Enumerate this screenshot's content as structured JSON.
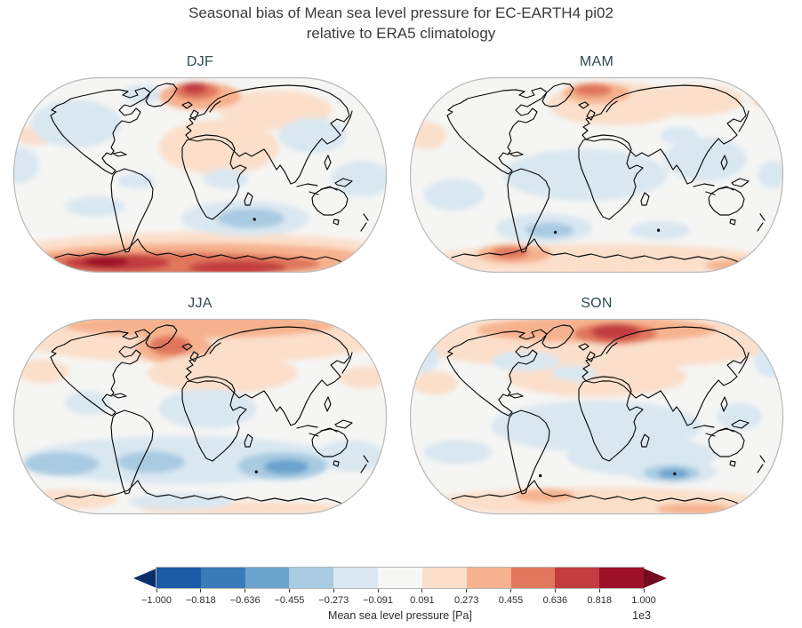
{
  "figure": {
    "title_line1": "Seasonal bias of Mean sea level pressure for EC-EARTH4 pi02",
    "title_line2": "relative to ERA5 climatology"
  },
  "colors": {
    "figure_background": "#ffffff",
    "map_background": "#f5f5f3",
    "coastline": "#0a0a0a",
    "map_outline": "#b9b9b9",
    "panel_title_text": "#2f4c52",
    "figure_title_text": "#3a3a3a",
    "tick_text": "#2d2d2d",
    "extreme_dot": "#111111"
  },
  "chart_data": {
    "type": "heatmap",
    "subtype": "filled-contour world maps, Robinson projection, 2x2 season grid",
    "title": "Seasonal bias of Mean sea level pressure for EC-EARTH4 pi02 relative to ERA5 climatology",
    "units": "Pa",
    "scale_multiplier": "1e3",
    "legend_position": "bottom horizontal colorbar with triangular over/under extensions",
    "colorbar": {
      "label": "Mean sea level pressure [Pa]",
      "multiplier": "1e3",
      "ticks": [
        "−1.000",
        "−0.818",
        "−0.636",
        "−0.455",
        "−0.273",
        "−0.091",
        "0.091",
        "0.273",
        "0.455",
        "0.636",
        "0.818",
        "1.000"
      ],
      "tick_values_Pa": [
        -1000,
        -818,
        -636,
        -455,
        -273,
        -91,
        91,
        273,
        455,
        636,
        818,
        1000
      ],
      "segment_colors": [
        "#1c5ba6",
        "#3a7ab8",
        "#6ba3cd",
        "#a8cbe2",
        "#d9e7f1",
        "#f6f6f4",
        "#fbdfcb",
        "#f6b28e",
        "#e0765b",
        "#c23c40",
        "#9c1127"
      ],
      "under_color": "#0b2e6b",
      "over_color": "#730c20"
    },
    "level_note": "feature level k maps to the k-th color band away from the white center band; positive = red (positive bias), negative = blue (negative bias); x,y,rx,ry are fractions of map width/height",
    "panels": [
      {
        "season": "DJF",
        "features": [
          {
            "x": 0.55,
            "y": 0.36,
            "rx": 0.16,
            "ry": 0.14,
            "level": 1
          },
          {
            "x": 0.7,
            "y": 0.17,
            "rx": 0.15,
            "ry": 0.1,
            "level": 1
          },
          {
            "x": 0.5,
            "y": 0.1,
            "rx": 0.11,
            "ry": 0.07,
            "level": 2
          },
          {
            "x": 0.49,
            "y": 0.075,
            "rx": 0.06,
            "ry": 0.045,
            "level": 3
          },
          {
            "x": 0.485,
            "y": 0.06,
            "rx": 0.033,
            "ry": 0.028,
            "level": 4
          },
          {
            "x": 0.06,
            "y": 0.3,
            "rx": 0.05,
            "ry": 0.05,
            "level": 1
          },
          {
            "x": 0.5,
            "y": 0.9,
            "rx": 0.52,
            "ry": 0.11,
            "level": 1
          },
          {
            "x": 0.5,
            "y": 0.93,
            "rx": 0.48,
            "ry": 0.085,
            "level": 2
          },
          {
            "x": 0.42,
            "y": 0.95,
            "rx": 0.4,
            "ry": 0.06,
            "level": 3
          },
          {
            "x": 0.28,
            "y": 0.945,
            "rx": 0.14,
            "ry": 0.042,
            "level": 4
          },
          {
            "x": 0.6,
            "y": 0.97,
            "rx": 0.13,
            "ry": 0.035,
            "level": 4
          },
          {
            "x": 0.25,
            "y": 0.94,
            "rx": 0.06,
            "ry": 0.026,
            "level": 5
          },
          {
            "x": 0.17,
            "y": 0.24,
            "rx": 0.12,
            "ry": 0.12,
            "level": -1
          },
          {
            "x": 0.345,
            "y": 0.09,
            "rx": 0.05,
            "ry": 0.05,
            "level": -1
          },
          {
            "x": 0.8,
            "y": 0.3,
            "rx": 0.09,
            "ry": 0.09,
            "level": -1
          },
          {
            "x": 0.93,
            "y": 0.52,
            "rx": 0.08,
            "ry": 0.09,
            "level": -1
          },
          {
            "x": 0.57,
            "y": 0.52,
            "rx": 0.06,
            "ry": 0.05,
            "level": -1
          },
          {
            "x": 0.33,
            "y": 0.53,
            "rx": 0.05,
            "ry": 0.04,
            "level": -1
          },
          {
            "x": 0.62,
            "y": 0.72,
            "rx": 0.17,
            "ry": 0.09,
            "level": -1
          },
          {
            "x": 0.635,
            "y": 0.72,
            "rx": 0.09,
            "ry": 0.05,
            "level": -2
          },
          {
            "x": 0.22,
            "y": 0.66,
            "rx": 0.08,
            "ry": 0.05,
            "level": -1
          },
          {
            "x": 0.02,
            "y": 0.45,
            "rx": 0.05,
            "ry": 0.09,
            "level": -1
          }
        ],
        "dots": [
          {
            "x": 0.645,
            "y": 0.725
          }
        ]
      },
      {
        "season": "MAM",
        "features": [
          {
            "x": 0.55,
            "y": 0.14,
            "rx": 0.18,
            "ry": 0.11,
            "level": 1
          },
          {
            "x": 0.5,
            "y": 0.085,
            "rx": 0.09,
            "ry": 0.055,
            "level": 2
          },
          {
            "x": 0.49,
            "y": 0.07,
            "rx": 0.05,
            "ry": 0.032,
            "level": 3
          },
          {
            "x": 0.76,
            "y": 0.12,
            "rx": 0.13,
            "ry": 0.08,
            "level": 1
          },
          {
            "x": 0.97,
            "y": 0.1,
            "rx": 0.06,
            "ry": 0.07,
            "level": 1
          },
          {
            "x": 0.045,
            "y": 0.3,
            "rx": 0.055,
            "ry": 0.07,
            "level": 1
          },
          {
            "x": 0.5,
            "y": 0.93,
            "rx": 0.46,
            "ry": 0.08,
            "level": 1
          },
          {
            "x": 0.28,
            "y": 0.9,
            "rx": 0.1,
            "ry": 0.05,
            "level": 2
          },
          {
            "x": 0.27,
            "y": 0.895,
            "rx": 0.05,
            "ry": 0.03,
            "level": 3
          },
          {
            "x": 0.88,
            "y": 0.96,
            "rx": 0.09,
            "ry": 0.032,
            "level": 2
          },
          {
            "x": 0.945,
            "y": 0.97,
            "rx": 0.035,
            "ry": 0.022,
            "level": 3
          },
          {
            "x": 0.47,
            "y": 0.5,
            "rx": 0.22,
            "ry": 0.13,
            "level": -1
          },
          {
            "x": 0.79,
            "y": 0.42,
            "rx": 0.11,
            "ry": 0.11,
            "level": -1
          },
          {
            "x": 0.36,
            "y": 0.77,
            "rx": 0.13,
            "ry": 0.075,
            "level": -1
          },
          {
            "x": 0.375,
            "y": 0.78,
            "rx": 0.065,
            "ry": 0.038,
            "level": -2
          },
          {
            "x": 0.67,
            "y": 0.78,
            "rx": 0.08,
            "ry": 0.045,
            "level": -1
          },
          {
            "x": 0.12,
            "y": 0.6,
            "rx": 0.08,
            "ry": 0.08,
            "level": -1
          },
          {
            "x": 0.72,
            "y": 0.3,
            "rx": 0.05,
            "ry": 0.045,
            "level": -1
          },
          {
            "x": 0.97,
            "y": 0.5,
            "rx": 0.04,
            "ry": 0.07,
            "level": -1
          }
        ],
        "dots": [
          {
            "x": 0.39,
            "y": 0.79
          },
          {
            "x": 0.665,
            "y": 0.78
          }
        ]
      },
      {
        "season": "JJA",
        "features": [
          {
            "x": 0.5,
            "y": 0.1,
            "rx": 0.5,
            "ry": 0.13,
            "level": 1
          },
          {
            "x": 0.5,
            "y": 0.04,
            "rx": 0.36,
            "ry": 0.06,
            "level": 2
          },
          {
            "x": 0.43,
            "y": 0.15,
            "rx": 0.1,
            "ry": 0.08,
            "level": 2
          },
          {
            "x": 0.42,
            "y": 0.14,
            "rx": 0.055,
            "ry": 0.05,
            "level": 3
          },
          {
            "x": 0.56,
            "y": 0.28,
            "rx": 0.2,
            "ry": 0.1,
            "level": 1
          },
          {
            "x": 0.08,
            "y": 0.27,
            "rx": 0.07,
            "ry": 0.06,
            "level": 1
          },
          {
            "x": 0.94,
            "y": 0.3,
            "rx": 0.07,
            "ry": 0.055,
            "level": 1
          },
          {
            "x": 0.52,
            "y": 0.46,
            "rx": 0.13,
            "ry": 0.1,
            "level": -1
          },
          {
            "x": 0.2,
            "y": 0.43,
            "rx": 0.06,
            "ry": 0.06,
            "level": -1
          },
          {
            "x": 0.45,
            "y": 0.72,
            "rx": 0.42,
            "ry": 0.12,
            "level": -1
          },
          {
            "x": 0.9,
            "y": 0.7,
            "rx": 0.09,
            "ry": 0.08,
            "level": -1
          },
          {
            "x": 0.13,
            "y": 0.74,
            "rx": 0.1,
            "ry": 0.06,
            "level": -2
          },
          {
            "x": 0.37,
            "y": 0.73,
            "rx": 0.09,
            "ry": 0.055,
            "level": -2
          },
          {
            "x": 0.72,
            "y": 0.75,
            "rx": 0.12,
            "ry": 0.07,
            "level": -2
          },
          {
            "x": 0.73,
            "y": 0.755,
            "rx": 0.06,
            "ry": 0.038,
            "level": -3
          },
          {
            "x": 0.15,
            "y": 0.92,
            "rx": 0.13,
            "ry": 0.05,
            "level": 1
          },
          {
            "x": 0.62,
            "y": 0.965,
            "rx": 0.28,
            "ry": 0.035,
            "level": 1
          },
          {
            "x": 0.45,
            "y": 0.93,
            "rx": 0.14,
            "ry": 0.04,
            "level": -1
          }
        ],
        "dots": [
          {
            "x": 0.65,
            "y": 0.78
          }
        ]
      },
      {
        "season": "SON",
        "features": [
          {
            "x": 0.5,
            "y": 0.12,
            "rx": 0.5,
            "ry": 0.14,
            "level": 1
          },
          {
            "x": 0.5,
            "y": 0.06,
            "rx": 0.32,
            "ry": 0.065,
            "level": 2
          },
          {
            "x": 0.55,
            "y": 0.08,
            "rx": 0.11,
            "ry": 0.055,
            "level": 3
          },
          {
            "x": 0.55,
            "y": 0.07,
            "rx": 0.065,
            "ry": 0.04,
            "level": 4
          },
          {
            "x": 0.5,
            "y": 0.3,
            "rx": 0.24,
            "ry": 0.1,
            "level": 1
          },
          {
            "x": 0.07,
            "y": 0.33,
            "rx": 0.06,
            "ry": 0.06,
            "level": 1
          },
          {
            "x": 0.03,
            "y": 0.2,
            "rx": 0.05,
            "ry": 0.08,
            "level": -1
          },
          {
            "x": 0.97,
            "y": 0.22,
            "rx": 0.05,
            "ry": 0.08,
            "level": -1
          },
          {
            "x": 0.31,
            "y": 0.22,
            "rx": 0.09,
            "ry": 0.05,
            "level": -1
          },
          {
            "x": 0.44,
            "y": 0.28,
            "rx": 0.06,
            "ry": 0.04,
            "level": -1
          },
          {
            "x": 0.5,
            "y": 0.55,
            "rx": 0.28,
            "ry": 0.13,
            "level": -1
          },
          {
            "x": 0.62,
            "y": 0.7,
            "rx": 0.2,
            "ry": 0.1,
            "level": -1
          },
          {
            "x": 0.7,
            "y": 0.78,
            "rx": 0.12,
            "ry": 0.06,
            "level": -1
          },
          {
            "x": 0.7,
            "y": 0.785,
            "rx": 0.075,
            "ry": 0.04,
            "level": -2
          },
          {
            "x": 0.705,
            "y": 0.79,
            "rx": 0.04,
            "ry": 0.025,
            "level": -3
          },
          {
            "x": 0.13,
            "y": 0.68,
            "rx": 0.09,
            "ry": 0.06,
            "level": -1
          },
          {
            "x": 0.88,
            "y": 0.5,
            "rx": 0.06,
            "ry": 0.07,
            "level": -1
          },
          {
            "x": 0.5,
            "y": 0.93,
            "rx": 0.44,
            "ry": 0.07,
            "level": 1
          },
          {
            "x": 0.36,
            "y": 0.9,
            "rx": 0.08,
            "ry": 0.035,
            "level": 2
          },
          {
            "x": 0.76,
            "y": 0.97,
            "rx": 0.1,
            "ry": 0.03,
            "level": 2
          }
        ],
        "dots": [
          {
            "x": 0.35,
            "y": 0.8
          },
          {
            "x": 0.708,
            "y": 0.79
          }
        ]
      }
    ]
  }
}
